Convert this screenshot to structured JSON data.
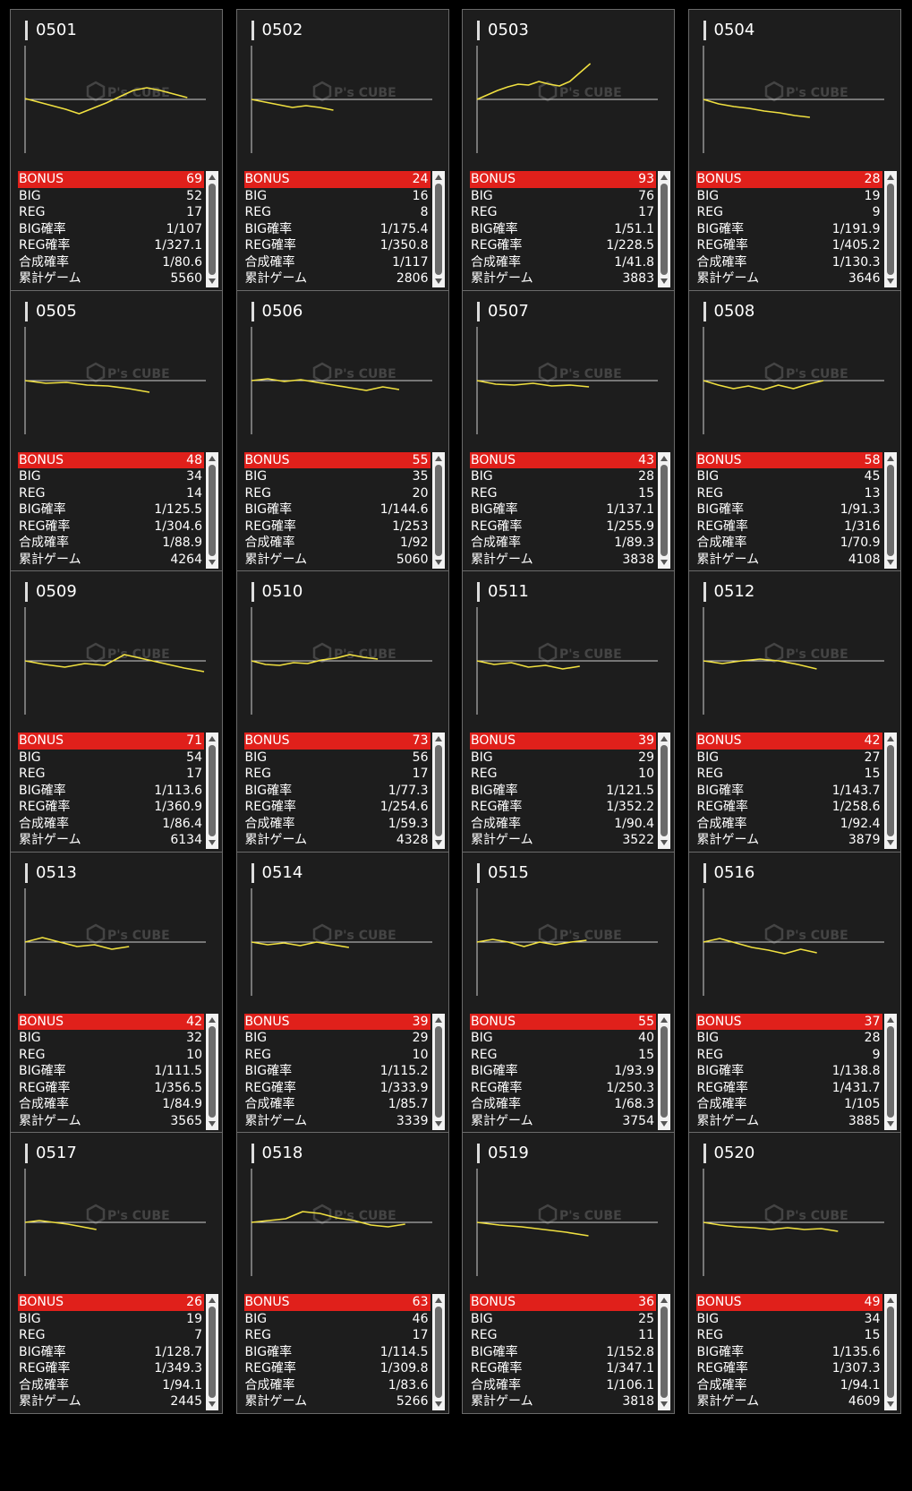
{
  "labels": {
    "bonus": "BONUS",
    "big": "BIG",
    "reg": "REG",
    "big_rate": "BIG確率",
    "reg_rate": "REG確率",
    "combined_rate": "合成確率",
    "total_games": "累計ゲーム"
  },
  "watermark": {
    "name": "P's CUBE"
  },
  "colors": {
    "bonus_row": "#e0201b",
    "graph_line": "#f0e040",
    "card_bg": "#1d1d1d"
  },
  "machines": [
    {
      "id": "0501",
      "bonus": "69",
      "big": "52",
      "reg": "17",
      "big_rate": "1/107",
      "reg_rate": "1/327.1",
      "combined_rate": "1/80.6",
      "total_games": "5560",
      "trend": [
        0.1,
        -0.3,
        -0.7,
        -1.1,
        -1.6,
        -1.0,
        -0.4,
        0.3,
        1.0,
        1.3,
        1.0,
        0.6,
        0.2
      ]
    },
    {
      "id": "0502",
      "bonus": "24",
      "big": "16",
      "reg": "8",
      "big_rate": "1/175.4",
      "reg_rate": "1/350.8",
      "combined_rate": "1/117",
      "total_games": "2806",
      "trend": [
        0.0,
        -0.3,
        -0.6,
        -0.9,
        -0.7,
        -0.9,
        -1.2
      ]
    },
    {
      "id": "0503",
      "bonus": "93",
      "big": "76",
      "reg": "17",
      "big_rate": "1/51.1",
      "reg_rate": "1/228.5",
      "combined_rate": "1/41.8",
      "total_games": "3883",
      "trend": [
        0.0,
        0.5,
        1.0,
        1.4,
        1.7,
        1.6,
        2.0,
        1.7,
        1.5,
        2.0,
        3.0,
        4.0
      ]
    },
    {
      "id": "0504",
      "bonus": "28",
      "big": "19",
      "reg": "9",
      "big_rate": "1/191.9",
      "reg_rate": "1/405.2",
      "combined_rate": "1/130.3",
      "total_games": "3646",
      "trend": [
        0.0,
        -0.5,
        -0.8,
        -1.0,
        -1.3,
        -1.5,
        -1.8,
        -2.0
      ]
    },
    {
      "id": "0505",
      "bonus": "48",
      "big": "34",
      "reg": "14",
      "big_rate": "1/125.5",
      "reg_rate": "1/304.6",
      "combined_rate": "1/88.9",
      "total_games": "4264",
      "trend": [
        0.0,
        -0.3,
        -0.2,
        -0.5,
        -0.6,
        -0.9,
        -1.3
      ]
    },
    {
      "id": "0506",
      "bonus": "55",
      "big": "35",
      "reg": "20",
      "big_rate": "1/144.6",
      "reg_rate": "1/253",
      "combined_rate": "1/92",
      "total_games": "5060",
      "trend": [
        0.0,
        0.2,
        -0.1,
        0.1,
        -0.2,
        -0.5,
        -0.8,
        -1.1,
        -0.7,
        -1.0
      ]
    },
    {
      "id": "0507",
      "bonus": "43",
      "big": "28",
      "reg": "15",
      "big_rate": "1/137.1",
      "reg_rate": "1/255.9",
      "combined_rate": "1/89.3",
      "total_games": "3838",
      "trend": [
        0.0,
        -0.4,
        -0.5,
        -0.3,
        -0.6,
        -0.5,
        -0.7
      ]
    },
    {
      "id": "0508",
      "bonus": "58",
      "big": "45",
      "reg": "13",
      "big_rate": "1/91.3",
      "reg_rate": "1/316",
      "combined_rate": "1/70.9",
      "total_games": "4108",
      "trend": [
        0.0,
        -0.5,
        -0.9,
        -0.6,
        -1.0,
        -0.5,
        -0.9,
        -0.4,
        0.0
      ]
    },
    {
      "id": "0509",
      "bonus": "71",
      "big": "54",
      "reg": "17",
      "big_rate": "1/113.6",
      "reg_rate": "1/360.9",
      "combined_rate": "1/86.4",
      "total_games": "6134",
      "trend": [
        0.0,
        -0.4,
        -0.7,
        -0.3,
        -0.5,
        0.7,
        0.2,
        -0.3,
        -0.8,
        -1.2
      ]
    },
    {
      "id": "0510",
      "bonus": "73",
      "big": "56",
      "reg": "17",
      "big_rate": "1/77.3",
      "reg_rate": "1/254.6",
      "combined_rate": "1/59.3",
      "total_games": "4328",
      "trend": [
        0.0,
        -0.4,
        -0.5,
        -0.2,
        -0.3,
        0.1,
        0.3,
        0.7,
        0.4,
        0.2
      ]
    },
    {
      "id": "0511",
      "bonus": "39",
      "big": "29",
      "reg": "10",
      "big_rate": "1/121.5",
      "reg_rate": "1/352.2",
      "combined_rate": "1/90.4",
      "total_games": "3522",
      "trend": [
        0.0,
        -0.4,
        -0.2,
        -0.7,
        -0.5,
        -0.9,
        -0.6
      ]
    },
    {
      "id": "0512",
      "bonus": "42",
      "big": "27",
      "reg": "15",
      "big_rate": "1/143.7",
      "reg_rate": "1/258.6",
      "combined_rate": "1/92.4",
      "total_games": "3879",
      "trend": [
        0.0,
        -0.3,
        0.0,
        0.2,
        0.0,
        -0.4,
        -0.9
      ]
    },
    {
      "id": "0513",
      "bonus": "42",
      "big": "32",
      "reg": "10",
      "big_rate": "1/111.5",
      "reg_rate": "1/356.5",
      "combined_rate": "1/84.9",
      "total_games": "3565",
      "trend": [
        0.0,
        0.5,
        0.0,
        -0.5,
        -0.3,
        -0.8,
        -0.5
      ]
    },
    {
      "id": "0514",
      "bonus": "39",
      "big": "29",
      "reg": "10",
      "big_rate": "1/115.2",
      "reg_rate": "1/333.9",
      "combined_rate": "1/85.7",
      "total_games": "3339",
      "trend": [
        0.0,
        -0.3,
        -0.1,
        -0.4,
        0.0,
        -0.3,
        -0.6
      ]
    },
    {
      "id": "0515",
      "bonus": "55",
      "big": "40",
      "reg": "15",
      "big_rate": "1/93.9",
      "reg_rate": "1/250.3",
      "combined_rate": "1/68.3",
      "total_games": "3754",
      "trend": [
        0.0,
        0.3,
        0.0,
        -0.5,
        0.0,
        -0.3,
        0.0,
        0.2
      ]
    },
    {
      "id": "0516",
      "bonus": "37",
      "big": "28",
      "reg": "9",
      "big_rate": "1/138.8",
      "reg_rate": "1/431.7",
      "combined_rate": "1/105",
      "total_games": "3885",
      "trend": [
        0.0,
        0.4,
        -0.1,
        -0.6,
        -0.9,
        -1.3,
        -0.8,
        -1.2
      ]
    },
    {
      "id": "0517",
      "bonus": "26",
      "big": "19",
      "reg": "7",
      "big_rate": "1/128.7",
      "reg_rate": "1/349.3",
      "combined_rate": "1/94.1",
      "total_games": "2445",
      "trend": [
        0.0,
        0.2,
        0.0,
        -0.2,
        -0.5,
        -0.8
      ]
    },
    {
      "id": "0518",
      "bonus": "63",
      "big": "46",
      "reg": "17",
      "big_rate": "1/114.5",
      "reg_rate": "1/309.8",
      "combined_rate": "1/83.6",
      "total_games": "5266",
      "trend": [
        0.0,
        0.2,
        0.4,
        1.2,
        1.0,
        0.5,
        0.2,
        -0.3,
        -0.5,
        -0.2
      ]
    },
    {
      "id": "0519",
      "bonus": "36",
      "big": "25",
      "reg": "11",
      "big_rate": "1/152.8",
      "reg_rate": "1/347.1",
      "combined_rate": "1/106.1",
      "total_games": "3818",
      "trend": [
        0.0,
        -0.3,
        -0.5,
        -0.8,
        -1.1,
        -1.5
      ]
    },
    {
      "id": "0520",
      "bonus": "49",
      "big": "34",
      "reg": "15",
      "big_rate": "1/135.6",
      "reg_rate": "1/307.3",
      "combined_rate": "1/94.1",
      "total_games": "4609",
      "trend": [
        0.0,
        -0.3,
        -0.5,
        -0.6,
        -0.8,
        -0.6,
        -0.8,
        -0.7,
        -1.0
      ]
    }
  ]
}
